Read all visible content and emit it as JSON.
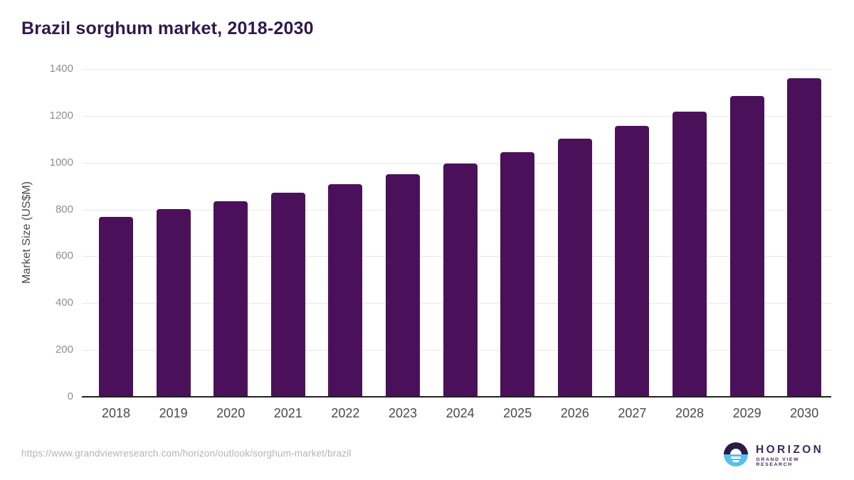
{
  "title": "Brazil sorghum market, 2018-2030",
  "chart_data": {
    "type": "bar",
    "categories": [
      "2018",
      "2019",
      "2020",
      "2021",
      "2022",
      "2023",
      "2024",
      "2025",
      "2026",
      "2027",
      "2028",
      "2029",
      "2030"
    ],
    "values": [
      765,
      800,
      833,
      868,
      905,
      948,
      992,
      1042,
      1098,
      1153,
      1215,
      1281,
      1356
    ],
    "title": "Brazil sorghum market, 2018-2030",
    "xlabel": "",
    "ylabel": "Market Size (US$M)",
    "ylim": [
      0,
      1400
    ],
    "ytick_step": 200,
    "grid": true,
    "legend": "none",
    "bar_color": "#4A115A"
  },
  "footer": {
    "source_url": "https://www.grandviewresearch.com/horizon/outlook/sorghum-market/brazil"
  },
  "logo": {
    "brand": "HORIZON",
    "tagline": "GRAND VIEW RESEARCH",
    "icon": "horizon-sunrise-icon",
    "color_dark": "#2E1A47",
    "color_blue": "#56C1EE",
    "text_color": "#3B2A5E"
  },
  "colors": {
    "title_text": "#32174D",
    "bar_fill": "#4A115A",
    "x_tick_text": "#4A4A4A",
    "y_tick_text": "#8F8F8F",
    "y_axis_title_text": "#4A4A4A",
    "grid_line": "#E8E8E8",
    "axis_line": "#222222",
    "url_text": "#B4B4B4"
  }
}
